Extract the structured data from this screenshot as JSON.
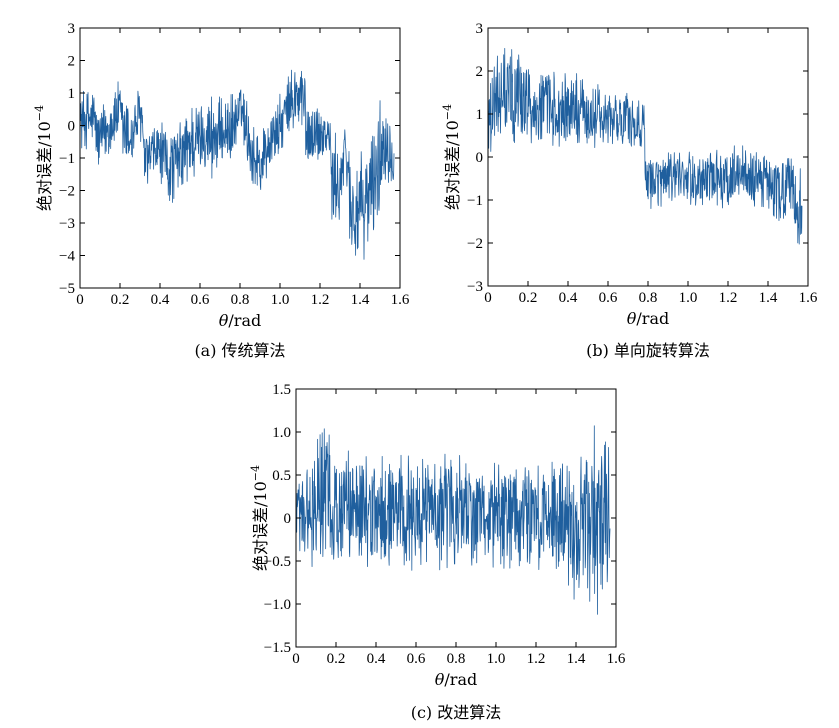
{
  "chart_data": [
    {
      "type": "line",
      "caption": "(a) 传统算法",
      "xlabel_var": "θ",
      "xlabel_unit": "/rad",
      "ylabel_text": "绝对误差/10",
      "ylabel_exp": "−4",
      "xlim": [
        0,
        1.6
      ],
      "ylim": [
        -5,
        3
      ],
      "x_ticks": [
        0,
        0.2,
        0.4,
        0.6,
        0.8,
        1.0,
        1.2,
        1.4,
        1.6
      ],
      "x_tick_labels": [
        "0",
        "0.2",
        "0.4",
        "0.6",
        "0.8",
        "1.0",
        "1.2",
        "1.4",
        "1.6"
      ],
      "y_ticks": [
        -5,
        -4,
        -3,
        -2,
        -1,
        0,
        1,
        2,
        3
      ],
      "y_tick_labels": [
        "−5",
        "−4",
        "−3",
        "−2",
        "−1",
        "0",
        "1",
        "2",
        "3"
      ],
      "series": [
        {
          "color": "#1f5f9e",
          "band": [
            {
              "x": 0.0,
              "lo": -0.9,
              "hi": 1.2
            },
            {
              "x": 0.07,
              "lo": -0.8,
              "hi": 1.3
            },
            {
              "x": 0.09,
              "lo": -1.5,
              "hi": 0.6
            },
            {
              "x": 0.16,
              "lo": -1.0,
              "hi": 1.1
            },
            {
              "x": 0.19,
              "lo": -0.6,
              "hi": 1.5
            },
            {
              "x": 0.22,
              "lo": -1.8,
              "hi": 1.4
            },
            {
              "x": 0.26,
              "lo": -1.4,
              "hi": 0.6
            },
            {
              "x": 0.28,
              "lo": -0.9,
              "hi": 1.2
            },
            {
              "x": 0.31,
              "lo": -0.7,
              "hi": 1.3
            },
            {
              "x": 0.32,
              "lo": -2.1,
              "hi": -0.2
            },
            {
              "x": 0.39,
              "lo": -1.8,
              "hi": 0.3
            },
            {
              "x": 0.45,
              "lo": -2.7,
              "hi": 0.0
            },
            {
              "x": 0.5,
              "lo": -2.2,
              "hi": 0.2
            },
            {
              "x": 0.55,
              "lo": -2.1,
              "hi": 1.0
            },
            {
              "x": 0.62,
              "lo": -1.4,
              "hi": 0.8
            },
            {
              "x": 0.66,
              "lo": -2.0,
              "hi": 1.3
            },
            {
              "x": 0.7,
              "lo": -1.4,
              "hi": 0.9
            },
            {
              "x": 0.76,
              "lo": -1.3,
              "hi": 1.1
            },
            {
              "x": 0.81,
              "lo": -0.4,
              "hi": 1.4
            },
            {
              "x": 0.86,
              "lo": -2.1,
              "hi": 0.4
            },
            {
              "x": 0.9,
              "lo": -2.5,
              "hi": 0.0
            },
            {
              "x": 0.95,
              "lo": -1.5,
              "hi": 0.5
            },
            {
              "x": 1.0,
              "lo": -1.1,
              "hi": 1.0
            },
            {
              "x": 1.06,
              "lo": -0.3,
              "hi": 1.9
            },
            {
              "x": 1.12,
              "lo": -1.0,
              "hi": 2.6
            },
            {
              "x": 1.13,
              "lo": -1.4,
              "hi": 0.8
            },
            {
              "x": 1.19,
              "lo": -1.3,
              "hi": 0.9
            },
            {
              "x": 1.25,
              "lo": -1.0,
              "hi": 0.4
            },
            {
              "x": 1.26,
              "lo": -3.8,
              "hi": -0.2
            },
            {
              "x": 1.3,
              "lo": -3.2,
              "hi": -0.2
            },
            {
              "x": 1.33,
              "lo": -1.7,
              "hi": 0.2
            },
            {
              "x": 1.36,
              "lo": -4.8,
              "hi": -0.7
            },
            {
              "x": 1.42,
              "lo": -4.2,
              "hi": -0.8
            },
            {
              "x": 1.48,
              "lo": -3.6,
              "hi": 0.6
            },
            {
              "x": 1.53,
              "lo": -1.9,
              "hi": 1.3
            },
            {
              "x": 1.57,
              "lo": -1.8,
              "hi": -0.5
            }
          ]
        }
      ]
    },
    {
      "type": "line",
      "caption": "(b) 单向旋转算法",
      "xlabel_var": "θ",
      "xlabel_unit": "/rad",
      "ylabel_text": "绝对误差/10",
      "ylabel_exp": "−4",
      "xlim": [
        0,
        1.6
      ],
      "ylim": [
        -3,
        3
      ],
      "x_ticks": [
        0,
        0.2,
        0.4,
        0.6,
        0.8,
        1.0,
        1.2,
        1.4,
        1.6
      ],
      "x_tick_labels": [
        "0",
        "0.2",
        "0.4",
        "0.6",
        "0.8",
        "1.0",
        "1.2",
        "1.4",
        "1.6"
      ],
      "y_ticks": [
        -3,
        -2,
        -1,
        0,
        1,
        2,
        3
      ],
      "y_tick_labels": [
        "−3",
        "−2",
        "−1",
        "0",
        "1",
        "2",
        "3"
      ],
      "series": [
        {
          "color": "#1f5f9e",
          "band": [
            {
              "x": 0.0,
              "lo": -0.1,
              "hi": 2.2
            },
            {
              "x": 0.06,
              "lo": 0.2,
              "hi": 2.6
            },
            {
              "x": 0.12,
              "lo": 0.1,
              "hi": 2.8
            },
            {
              "x": 0.2,
              "lo": 0.1,
              "hi": 2.5
            },
            {
              "x": 0.3,
              "lo": 0.0,
              "hi": 2.2
            },
            {
              "x": 0.4,
              "lo": 0.1,
              "hi": 2.0
            },
            {
              "x": 0.5,
              "lo": 0.1,
              "hi": 1.9
            },
            {
              "x": 0.6,
              "lo": 0.1,
              "hi": 1.6
            },
            {
              "x": 0.7,
              "lo": 0.2,
              "hi": 1.6
            },
            {
              "x": 0.78,
              "lo": 0.0,
              "hi": 1.4
            },
            {
              "x": 0.79,
              "lo": -1.2,
              "hi": 0.1
            },
            {
              "x": 0.85,
              "lo": -1.3,
              "hi": 0.1
            },
            {
              "x": 0.95,
              "lo": -1.2,
              "hi": 0.2
            },
            {
              "x": 1.05,
              "lo": -1.2,
              "hi": 0.2
            },
            {
              "x": 1.15,
              "lo": -1.3,
              "hi": 0.2
            },
            {
              "x": 1.25,
              "lo": -1.0,
              "hi": 0.35
            },
            {
              "x": 1.35,
              "lo": -1.3,
              "hi": 0.2
            },
            {
              "x": 1.45,
              "lo": -1.7,
              "hi": 0.1
            },
            {
              "x": 1.52,
              "lo": -2.0,
              "hi": 0.2
            },
            {
              "x": 1.57,
              "lo": -2.3,
              "hi": -0.3
            }
          ]
        }
      ]
    },
    {
      "type": "line",
      "caption": "(c) 改进算法",
      "xlabel_var": "θ",
      "xlabel_unit": "/rad",
      "ylabel_text": "绝对误差/10",
      "ylabel_exp": "−4",
      "xlim": [
        0,
        1.6
      ],
      "ylim": [
        -1.5,
        1.5
      ],
      "x_ticks": [
        0,
        0.2,
        0.4,
        0.6,
        0.8,
        1.0,
        1.2,
        1.4,
        1.6
      ],
      "x_tick_labels": [
        "0",
        "0.2",
        "0.4",
        "0.6",
        "0.8",
        "1.0",
        "1.2",
        "1.4",
        "1.6"
      ],
      "y_ticks": [
        -1.5,
        -1.0,
        -0.5,
        0,
        0.5,
        1.0,
        1.5
      ],
      "y_tick_labels": [
        "−1.5",
        "−1.0",
        "−0.5",
        "0",
        "0.5",
        "1.0",
        "1.5"
      ],
      "series": [
        {
          "color": "#1f5f9e",
          "band": [
            {
              "x": 0.0,
              "lo": -0.5,
              "hi": 0.6
            },
            {
              "x": 0.05,
              "lo": -0.6,
              "hi": 0.7
            },
            {
              "x": 0.1,
              "lo": -0.6,
              "hi": 1.0
            },
            {
              "x": 0.12,
              "lo": -0.7,
              "hi": 1.3
            },
            {
              "x": 0.2,
              "lo": -0.6,
              "hi": 0.9
            },
            {
              "x": 0.3,
              "lo": -0.6,
              "hi": 0.8
            },
            {
              "x": 0.4,
              "lo": -0.6,
              "hi": 0.8
            },
            {
              "x": 0.5,
              "lo": -0.6,
              "hi": 0.8
            },
            {
              "x": 0.6,
              "lo": -0.7,
              "hi": 0.8
            },
            {
              "x": 0.7,
              "lo": -0.6,
              "hi": 0.7
            },
            {
              "x": 0.8,
              "lo": -0.7,
              "hi": 0.9
            },
            {
              "x": 0.9,
              "lo": -0.6,
              "hi": 0.6
            },
            {
              "x": 1.0,
              "lo": -0.6,
              "hi": 0.7
            },
            {
              "x": 1.1,
              "lo": -0.7,
              "hi": 0.7
            },
            {
              "x": 1.2,
              "lo": -0.6,
              "hi": 0.6
            },
            {
              "x": 1.3,
              "lo": -0.7,
              "hi": 0.8
            },
            {
              "x": 1.38,
              "lo": -1.1,
              "hi": 0.8
            },
            {
              "x": 1.45,
              "lo": -0.9,
              "hi": 0.9
            },
            {
              "x": 1.5,
              "lo": -1.2,
              "hi": 1.2
            },
            {
              "x": 1.57,
              "lo": -0.9,
              "hi": 0.8
            }
          ]
        }
      ]
    }
  ]
}
